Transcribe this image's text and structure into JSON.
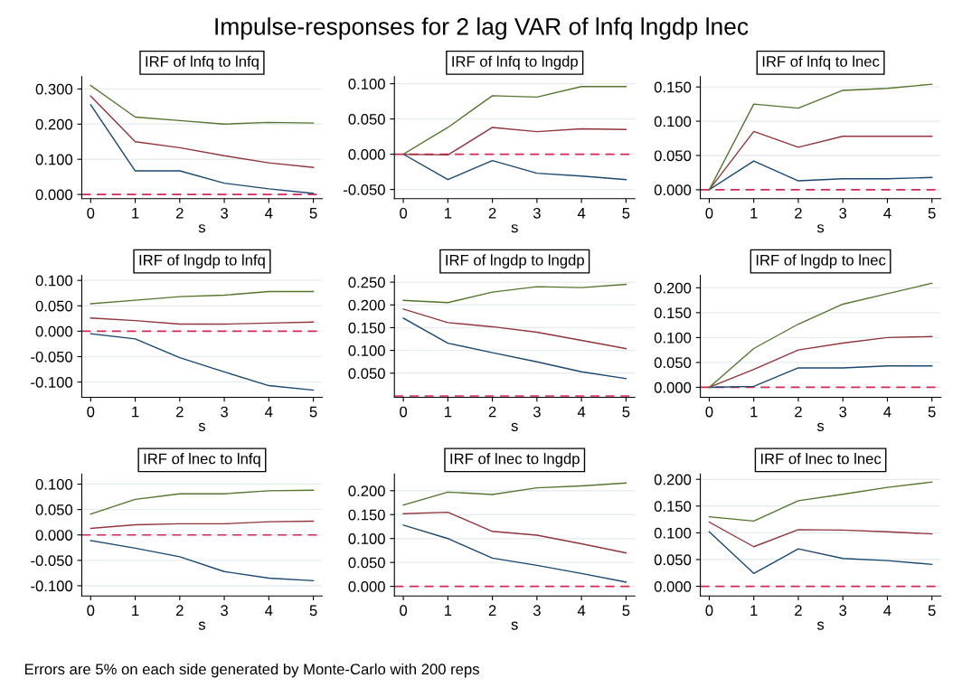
{
  "chart_data": [
    {
      "type": "line",
      "title": "IRF of lnfq to lnfq",
      "xlabel": "s",
      "x": [
        0,
        1,
        2,
        3,
        4,
        5
      ],
      "xlim": [
        -0.2,
        5.2
      ],
      "xticks": [
        0,
        1,
        2,
        3,
        4,
        5
      ],
      "ylim": [
        -0.012,
        0.335
      ],
      "yticks": [
        {
          "value": 0,
          "label": "0.000"
        },
        {
          "value": 0.1,
          "label": "0.100"
        },
        {
          "value": 0.2,
          "label": "0.200"
        },
        {
          "value": 0.3,
          "label": "0.300"
        }
      ],
      "grid": "y",
      "ref_lines": [
        {
          "axis": "y",
          "value": 0,
          "color": "#d62857",
          "line_style": "dashed"
        }
      ],
      "series": [
        {
          "color": "#1a476f",
          "values": [
            0.255,
            0.067,
            0.067,
            0.032,
            0.016,
            0.003
          ]
        },
        {
          "color": "#90353b",
          "values": [
            0.28,
            0.15,
            0.133,
            0.11,
            0.09,
            0.077
          ]
        },
        {
          "color": "#55752f",
          "values": [
            0.31,
            0.22,
            0.21,
            0.2,
            0.205,
            0.203
          ]
        }
      ]
    },
    {
      "type": "line",
      "title": "IRF of lnfq to lngdp",
      "xlabel": "s",
      "x": [
        0,
        1,
        2,
        3,
        4,
        5
      ],
      "xlim": [
        -0.2,
        5.2
      ],
      "xticks": [
        0,
        1,
        2,
        3,
        4,
        5
      ],
      "ylim": [
        -0.063,
        0.11
      ],
      "yticks": [
        {
          "value": -0.05,
          "label": "-0.050"
        },
        {
          "value": 0,
          "label": "0.000"
        },
        {
          "value": 0.05,
          "label": "0.050"
        },
        {
          "value": 0.1,
          "label": "0.100"
        }
      ],
      "grid": "y",
      "ref_lines": [
        {
          "axis": "y",
          "value": 0,
          "color": "#d62857",
          "line_style": "dashed"
        }
      ],
      "series": [
        {
          "color": "#1a476f",
          "values": [
            0,
            -0.036,
            -0.009,
            -0.027,
            -0.031,
            -0.036
          ]
        },
        {
          "color": "#90353b",
          "values": [
            0,
            -0.001,
            0.038,
            0.032,
            0.036,
            0.035
          ]
        },
        {
          "color": "#55752f",
          "values": [
            0,
            0.038,
            0.083,
            0.081,
            0.096,
            0.096
          ]
        }
      ]
    },
    {
      "type": "line",
      "title": "IRF of lnfq to lnec",
      "xlabel": "s",
      "x": [
        0,
        1,
        2,
        3,
        4,
        5
      ],
      "xlim": [
        -0.2,
        5.2
      ],
      "xticks": [
        0,
        1,
        2,
        3,
        4,
        5
      ],
      "ylim": [
        -0.013,
        0.165
      ],
      "yticks": [
        {
          "value": 0,
          "label": "0.000"
        },
        {
          "value": 0.05,
          "label": "0.050"
        },
        {
          "value": 0.1,
          "label": "0.100"
        },
        {
          "value": 0.15,
          "label": "0.150"
        }
      ],
      "grid": "y",
      "ref_lines": [
        {
          "axis": "y",
          "value": 0,
          "color": "#d62857",
          "line_style": "dashed"
        }
      ],
      "series": [
        {
          "color": "#1a476f",
          "values": [
            0,
            0.042,
            0.013,
            0.016,
            0.016,
            0.018
          ]
        },
        {
          "color": "#90353b",
          "values": [
            0,
            0.085,
            0.062,
            0.078,
            0.078,
            0.078
          ]
        },
        {
          "color": "#55752f",
          "values": [
            0,
            0.125,
            0.119,
            0.145,
            0.148,
            0.154
          ]
        }
      ]
    },
    {
      "type": "line",
      "title": "IRF of lngdp to lnfq",
      "xlabel": "s",
      "x": [
        0,
        1,
        2,
        3,
        4,
        5
      ],
      "xlim": [
        -0.2,
        5.2
      ],
      "xticks": [
        0,
        1,
        2,
        3,
        4,
        5
      ],
      "ylim": [
        -0.13,
        0.11
      ],
      "yticks": [
        {
          "value": -0.1,
          "label": "-0.100"
        },
        {
          "value": -0.05,
          "label": "-0.050"
        },
        {
          "value": 0,
          "label": "0.000"
        },
        {
          "value": 0.05,
          "label": "0.050"
        },
        {
          "value": 0.1,
          "label": "0.100"
        }
      ],
      "grid": "y",
      "ref_lines": [
        {
          "axis": "y",
          "value": 0,
          "color": "#d62857",
          "line_style": "dashed"
        }
      ],
      "series": [
        {
          "color": "#1a476f",
          "values": [
            -0.005,
            -0.015,
            -0.052,
            -0.08,
            -0.107,
            -0.116
          ]
        },
        {
          "color": "#90353b",
          "values": [
            0.026,
            0.021,
            0.014,
            0.014,
            0.016,
            0.018
          ]
        },
        {
          "color": "#55752f",
          "values": [
            0.054,
            0.061,
            0.068,
            0.071,
            0.078,
            0.078
          ]
        }
      ]
    },
    {
      "type": "line",
      "title": "IRF of lngdp to lngdp",
      "xlabel": "s",
      "x": [
        0,
        1,
        2,
        3,
        4,
        5
      ],
      "xlim": [
        -0.2,
        5.2
      ],
      "xticks": [
        0,
        1,
        2,
        3,
        4,
        5
      ],
      "ylim": [
        -0.003,
        0.265
      ],
      "yticks": [
        {
          "value": 0.05,
          "label": "0.050"
        },
        {
          "value": 0.1,
          "label": "0.100"
        },
        {
          "value": 0.15,
          "label": "0.150"
        },
        {
          "value": 0.2,
          "label": "0.200"
        },
        {
          "value": 0.25,
          "label": "0.250"
        }
      ],
      "grid": "y",
      "ref_lines": [
        {
          "axis": "y",
          "value": 0,
          "color": "#d62857",
          "line_style": "dashed"
        }
      ],
      "series": [
        {
          "color": "#1a476f",
          "values": [
            0.171,
            0.116,
            0.095,
            0.075,
            0.053,
            0.038
          ]
        },
        {
          "color": "#90353b",
          "values": [
            0.191,
            0.161,
            0.152,
            0.14,
            0.122,
            0.104
          ]
        },
        {
          "color": "#55752f",
          "values": [
            0.21,
            0.205,
            0.228,
            0.24,
            0.238,
            0.245
          ]
        }
      ]
    },
    {
      "type": "line",
      "title": "IRF of lngdp to lnec",
      "xlabel": "s",
      "x": [
        0,
        1,
        2,
        3,
        4,
        5
      ],
      "xlim": [
        -0.2,
        5.2
      ],
      "xticks": [
        0,
        1,
        2,
        3,
        4,
        5
      ],
      "ylim": [
        -0.02,
        0.225
      ],
      "yticks": [
        {
          "value": 0,
          "label": "0.000"
        },
        {
          "value": 0.05,
          "label": "0.050"
        },
        {
          "value": 0.1,
          "label": "0.100"
        },
        {
          "value": 0.15,
          "label": "0.150"
        },
        {
          "value": 0.2,
          "label": "0.200"
        }
      ],
      "grid": "y",
      "ref_lines": [
        {
          "axis": "y",
          "value": 0,
          "color": "#d62857",
          "line_style": "dashed"
        }
      ],
      "series": [
        {
          "color": "#1a476f",
          "values": [
            0,
            0.002,
            0.039,
            0.039,
            0.043,
            0.043
          ]
        },
        {
          "color": "#90353b",
          "values": [
            0,
            0.036,
            0.075,
            0.089,
            0.1,
            0.102
          ]
        },
        {
          "color": "#55752f",
          "values": [
            0,
            0.078,
            0.127,
            0.167,
            0.188,
            0.209
          ]
        }
      ]
    },
    {
      "type": "line",
      "title": "IRF of lnec to lnfq",
      "xlabel": "s",
      "x": [
        0,
        1,
        2,
        3,
        4,
        5
      ],
      "xlim": [
        -0.2,
        5.2
      ],
      "xticks": [
        0,
        1,
        2,
        3,
        4,
        5
      ],
      "ylim": [
        -0.12,
        0.12
      ],
      "yticks": [
        {
          "value": -0.1,
          "label": "-0.100"
        },
        {
          "value": -0.05,
          "label": "-0.050"
        },
        {
          "value": 0,
          "label": "0.000"
        },
        {
          "value": 0.05,
          "label": "0.050"
        },
        {
          "value": 0.1,
          "label": "0.100"
        }
      ],
      "grid": "y",
      "ref_lines": [
        {
          "axis": "y",
          "value": 0,
          "color": "#d62857",
          "line_style": "dashed"
        }
      ],
      "series": [
        {
          "color": "#1a476f",
          "values": [
            -0.011,
            -0.026,
            -0.043,
            -0.072,
            -0.085,
            -0.09
          ]
        },
        {
          "color": "#90353b",
          "values": [
            0.013,
            0.02,
            0.022,
            0.022,
            0.026,
            0.027
          ]
        },
        {
          "color": "#55752f",
          "values": [
            0.041,
            0.07,
            0.081,
            0.081,
            0.087,
            0.088
          ]
        }
      ]
    },
    {
      "type": "line",
      "title": "IRF of lnec to lngdp",
      "xlabel": "s",
      "x": [
        0,
        1,
        2,
        3,
        4,
        5
      ],
      "xlim": [
        -0.2,
        5.2
      ],
      "xticks": [
        0,
        1,
        2,
        3,
        4,
        5
      ],
      "ylim": [
        -0.02,
        0.235
      ],
      "yticks": [
        {
          "value": 0,
          "label": "0.000"
        },
        {
          "value": 0.05,
          "label": "0.050"
        },
        {
          "value": 0.1,
          "label": "0.100"
        },
        {
          "value": 0.15,
          "label": "0.150"
        },
        {
          "value": 0.2,
          "label": "0.200"
        }
      ],
      "grid": "y",
      "ref_lines": [
        {
          "axis": "y",
          "value": 0,
          "color": "#d62857",
          "line_style": "dashed"
        }
      ],
      "series": [
        {
          "color": "#1a476f",
          "values": [
            0.128,
            0.1,
            0.059,
            0.044,
            0.027,
            0.009
          ]
        },
        {
          "color": "#90353b",
          "values": [
            0.152,
            0.155,
            0.115,
            0.107,
            0.089,
            0.07
          ]
        },
        {
          "color": "#55752f",
          "values": [
            0.17,
            0.197,
            0.192,
            0.206,
            0.21,
            0.216
          ]
        }
      ]
    },
    {
      "type": "line",
      "title": "IRF of lnec to lnec",
      "xlabel": "s",
      "x": [
        0,
        1,
        2,
        3,
        4,
        5
      ],
      "xlim": [
        -0.2,
        5.2
      ],
      "xticks": [
        0,
        1,
        2,
        3,
        4,
        5
      ],
      "ylim": [
        -0.018,
        0.21
      ],
      "yticks": [
        {
          "value": 0,
          "label": "0.000"
        },
        {
          "value": 0.05,
          "label": "0.050"
        },
        {
          "value": 0.1,
          "label": "0.100"
        },
        {
          "value": 0.15,
          "label": "0.150"
        },
        {
          "value": 0.2,
          "label": "0.200"
        }
      ],
      "grid": "y",
      "ref_lines": [
        {
          "axis": "y",
          "value": 0,
          "color": "#d62857",
          "line_style": "dashed"
        }
      ],
      "series": [
        {
          "color": "#1a476f",
          "values": [
            0.102,
            0.024,
            0.07,
            0.052,
            0.048,
            0.041
          ]
        },
        {
          "color": "#90353b",
          "values": [
            0.12,
            0.074,
            0.106,
            0.105,
            0.102,
            0.098
          ]
        },
        {
          "color": "#55752f",
          "values": [
            0.13,
            0.122,
            0.16,
            0.172,
            0.185,
            0.195
          ]
        }
      ]
    },
    {
      "type": "other",
      "title": "Impulse-responses for 2 lag VAR of lnfq lngdp lnec",
      "annotations": [
        "Errors are 5% on each side generated by Monte-Carlo with 200 reps"
      ]
    }
  ]
}
